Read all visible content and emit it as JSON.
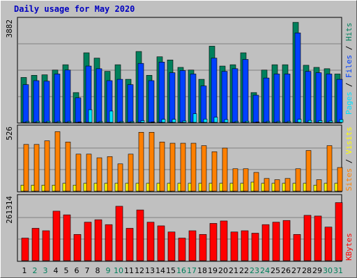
{
  "title": "Daily usage for May 2020",
  "colors": {
    "hits": "#00805c",
    "files": "#0040ff",
    "pages": "#00e0ff",
    "visits": "#ffff00",
    "sites": "#ff8000",
    "kbytes": "#ff0000",
    "weekend_day_label": "#00805c",
    "weekday_label": "#000000",
    "title": "#0000c0"
  },
  "panels": {
    "top": {
      "max_label": "3882",
      "legend": [
        "Pages",
        "Files",
        "Hits"
      ]
    },
    "middle": {
      "max_label": "526",
      "legend": [
        "Sites",
        "Visits"
      ]
    },
    "bottom": {
      "max_label": "261314",
      "legend": [
        "KBytes"
      ]
    }
  },
  "chart_data": {
    "type": "bar",
    "title": "Daily usage for May 2020",
    "categories": [
      "1",
      "2",
      "3",
      "4",
      "5",
      "6",
      "7",
      "8",
      "9",
      "10",
      "11",
      "12",
      "13",
      "14",
      "15",
      "16",
      "17",
      "18",
      "19",
      "20",
      "21",
      "22",
      "23",
      "24",
      "25",
      "26",
      "27",
      "28",
      "29",
      "30",
      "31"
    ],
    "weekend_days": [
      "2",
      "3",
      "9",
      "10",
      "16",
      "17",
      "23",
      "24",
      "30",
      "31"
    ],
    "series": [
      {
        "name": "Hits",
        "panel": "top",
        "values": [
          1720,
          1800,
          1820,
          2000,
          2200,
          1150,
          2650,
          2450,
          1950,
          2200,
          1650,
          2700,
          1800,
          2500,
          2380,
          2100,
          2000,
          1650,
          2900,
          2150,
          2200,
          2650,
          1150,
          2000,
          2200,
          2200,
          3800,
          2180,
          2100,
          2050,
          1850
        ]
      },
      {
        "name": "Files",
        "panel": "top",
        "values": [
          1450,
          1600,
          1580,
          1850,
          2000,
          950,
          2150,
          2050,
          1600,
          1650,
          1450,
          2250,
          1600,
          2300,
          1900,
          1980,
          1850,
          1400,
          2450,
          1950,
          2050,
          2400,
          1050,
          1700,
          1850,
          1850,
          3400,
          1950,
          1900,
          1850,
          1650
        ]
      },
      {
        "name": "Pages",
        "panel": "top",
        "values": [
          60,
          70,
          70,
          60,
          60,
          40,
          500,
          60,
          450,
          60,
          60,
          90,
          40,
          140,
          140,
          80,
          350,
          150,
          220,
          130,
          60,
          70,
          40,
          60,
          60,
          60,
          140,
          100,
          90,
          80,
          130
        ]
      },
      {
        "name": "Sites",
        "panel": "middle",
        "values": [
          390,
          390,
          420,
          495,
          410,
          310,
          310,
          280,
          290,
          230,
          310,
          490,
          490,
          410,
          400,
          400,
          400,
          380,
          330,
          360,
          190,
          190,
          160,
          110,
          100,
          110,
          190,
          340,
          100,
          380,
          200
        ]
      },
      {
        "name": "Visits",
        "panel": "middle",
        "values": [
          55,
          55,
          55,
          55,
          70,
          55,
          70,
          70,
          70,
          70,
          70,
          70,
          70,
          70,
          70,
          70,
          70,
          70,
          70,
          70,
          70,
          70,
          80,
          70,
          70,
          70,
          70,
          70,
          55,
          70,
          70
        ]
      },
      {
        "name": "KBytes",
        "panel": "bottom",
        "values": [
          95000,
          135000,
          125000,
          205000,
          190000,
          110000,
          160000,
          170000,
          150000,
          225000,
          135000,
          210000,
          160000,
          145000,
          120000,
          95000,
          125000,
          110000,
          155000,
          165000,
          120000,
          125000,
          115000,
          150000,
          160000,
          167000,
          110000,
          188000,
          185000,
          140000,
          240000
        ]
      }
    ],
    "ylim_top": [
      0,
      3882
    ],
    "ylim_middle": [
      0,
      526
    ],
    "ylim_bottom": [
      0,
      261314
    ]
  }
}
